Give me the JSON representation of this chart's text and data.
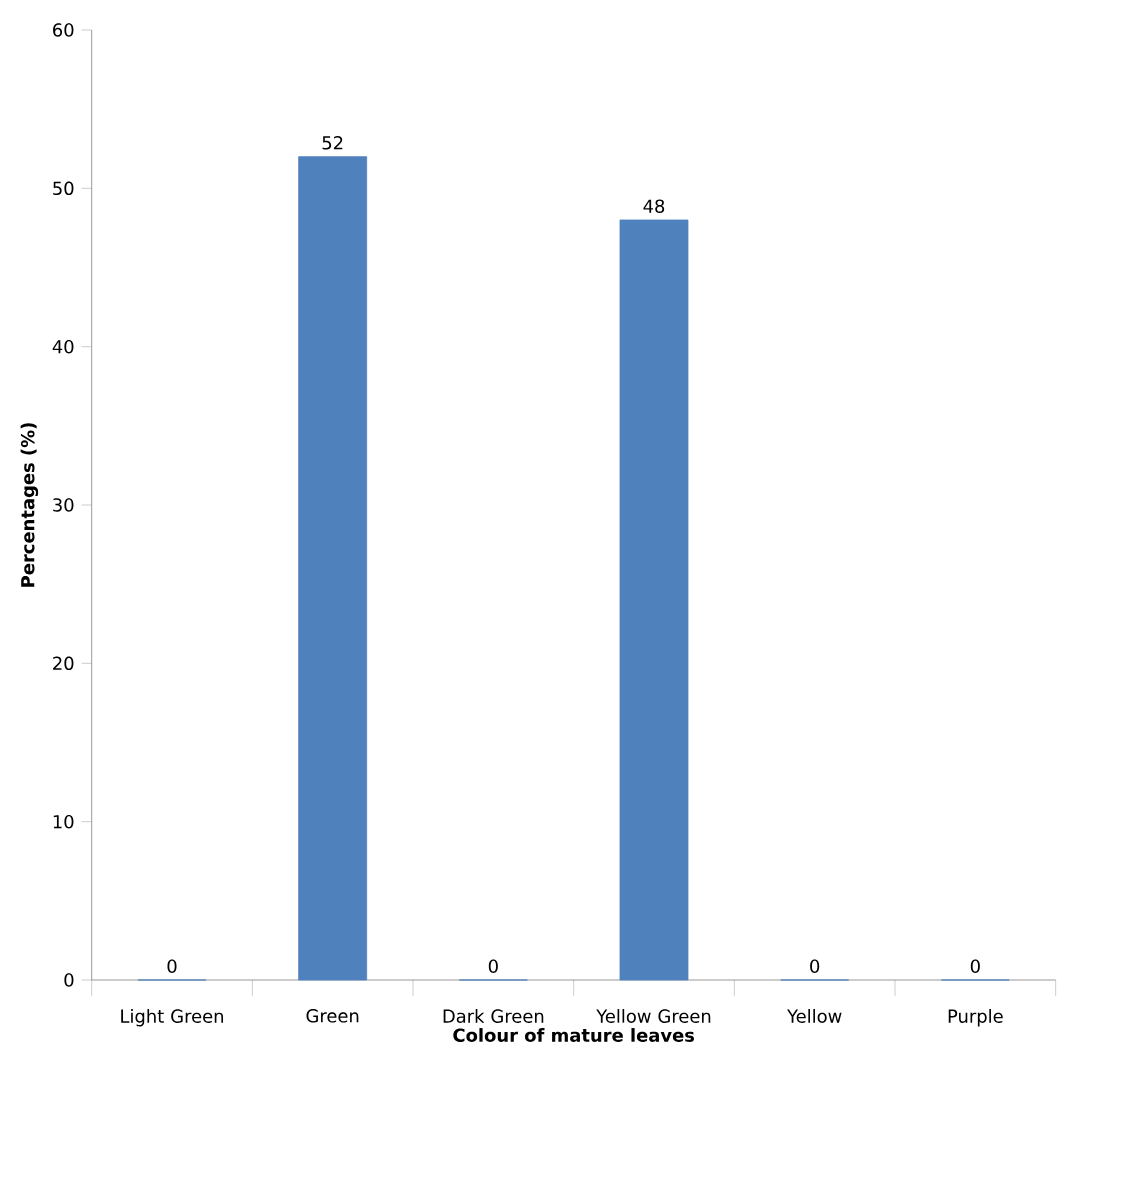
{
  "chart_data": {
    "type": "bar",
    "xlabel": "Colour of mature leaves",
    "ylabel": "Percentages (%)",
    "categories": [
      "Light Green",
      "Green",
      "Dark Green",
      "Yellow Green",
      "Yellow",
      "Purple"
    ],
    "values": [
      0,
      52,
      0,
      48,
      0,
      0
    ],
    "color": "#4f81bd",
    "ylim": [
      0,
      60
    ],
    "yticks": [
      0,
      10,
      20,
      30,
      40,
      50,
      60
    ],
    "data_labels": true
  }
}
